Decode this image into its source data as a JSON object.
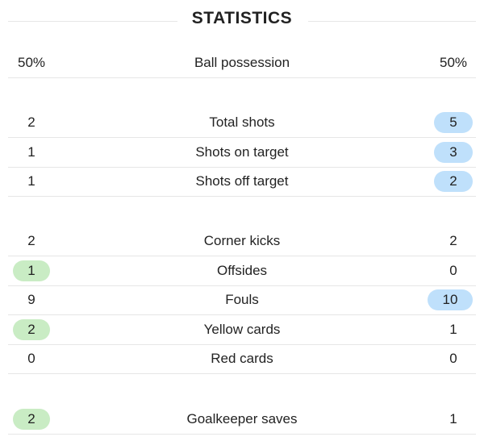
{
  "title": "STATISTICS",
  "colors": {
    "home_highlight": "#c9ecc4",
    "away_highlight": "#bfe0fb",
    "divider": "#e6e6e6"
  },
  "stats": [
    {
      "label": "Ball possession",
      "home": "50%",
      "away": "50%",
      "home_hl": false,
      "away_hl": false
    },
    {
      "label": "Total shots",
      "home": "2",
      "away": "5",
      "home_hl": false,
      "away_hl": true
    },
    {
      "label": "Shots on target",
      "home": "1",
      "away": "3",
      "home_hl": false,
      "away_hl": true
    },
    {
      "label": "Shots off target",
      "home": "1",
      "away": "2",
      "home_hl": false,
      "away_hl": true
    },
    {
      "label": "Corner kicks",
      "home": "2",
      "away": "2",
      "home_hl": false,
      "away_hl": false
    },
    {
      "label": "Offsides",
      "home": "1",
      "away": "0",
      "home_hl": true,
      "away_hl": false
    },
    {
      "label": "Fouls",
      "home": "9",
      "away": "10",
      "home_hl": false,
      "away_hl": true
    },
    {
      "label": "Yellow cards",
      "home": "2",
      "away": "1",
      "home_hl": true,
      "away_hl": false
    },
    {
      "label": "Red cards",
      "home": "0",
      "away": "0",
      "home_hl": false,
      "away_hl": false
    },
    {
      "label": "Goalkeeper saves",
      "home": "2",
      "away": "1",
      "home_hl": true,
      "away_hl": false
    }
  ]
}
